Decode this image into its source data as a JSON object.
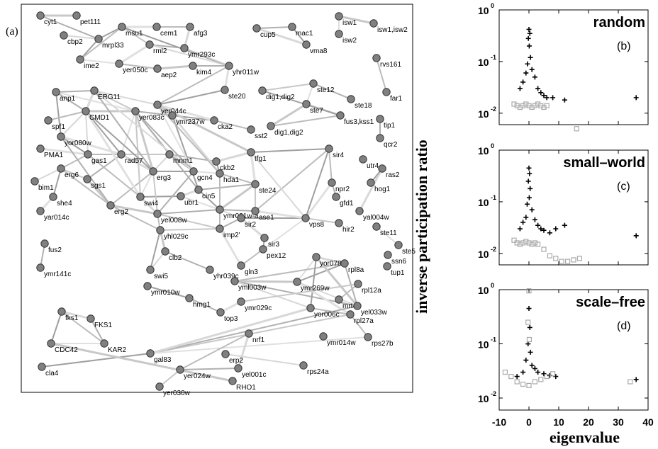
{
  "panel_a_label": "(a)",
  "y_axis_label": "inverse participation ratio",
  "x_axis_label": "eigenvalue",
  "network": {
    "nodes": [
      "cyt1",
      "pet111",
      "cbp2",
      "mrpl33",
      "msu1",
      "cem1",
      "afg3",
      "rml2",
      "ymr293c",
      "ime2",
      "yer050c",
      "aep2",
      "kim4",
      "yhr011w",
      "cup5",
      "mac1",
      "vma8",
      "isw1",
      "isw2",
      "isw1,isw2",
      "rvs161",
      "far1",
      "anp1",
      "ERG11",
      "yer044c",
      "ste20",
      "dig1,dig2",
      "ste12",
      "ste18",
      "ste7",
      "fus3,kss1",
      "dig1,dig2",
      "tip1",
      "qcr2",
      "spf1",
      "CMD1",
      "yer083c",
      "ymr237w",
      "cka2",
      "sst2",
      "yor080w",
      "PMA1",
      "gas1",
      "rad57",
      "mnm1",
      "ckb2",
      "tfg1",
      "sir4",
      "utr4",
      "ras2",
      "hog1",
      "erg6",
      "sgs1",
      "erg3",
      "gcn4",
      "hda1",
      "ste24",
      "npr2",
      "bim1",
      "she4",
      "swi4",
      "cin5",
      "ubr1",
      "ase1",
      "gfd1",
      "yal004w",
      "yar014c",
      "erg2",
      "yel008w",
      "ymr031w-a",
      "sir2",
      "vps8",
      "hir2",
      "ste11",
      "ste5",
      "yhl029c",
      "imp2'",
      "sir3",
      "pex12",
      "ssn6",
      "fus2",
      "clb2",
      "gln3",
      "tup1",
      "ymr141c",
      "swi5",
      "yhr039c",
      "yor078w",
      "rpl8a",
      "ymr269w",
      "rpl12a",
      "yml003w",
      "mrt4",
      "yel033w",
      "ymr010w",
      "hmg1",
      "ymr029c",
      "top3",
      "fks1",
      "FKS1",
      "yor006c",
      "rpl27a",
      "CDC42",
      "KAR2",
      "nrf1",
      "rps27b",
      "ymr014w",
      "gal83",
      "erp2",
      "yel001c",
      "yer024w",
      "rps24a",
      "cla4",
      "RHO1",
      "yer030w"
    ]
  },
  "chart_data": [
    {
      "type": "scatter",
      "panel": "(b)",
      "title": "random",
      "xlim": [
        -10,
        40
      ],
      "yscale": "log",
      "ylim": [
        0.006,
        1
      ],
      "ytick_labels": [
        "10",
        "10",
        "10"
      ],
      "ytick_exponents": [
        "0",
        "-1",
        "-2"
      ],
      "series": [
        {
          "marker": "plus",
          "color": "#000000",
          "points": [
            [
              0,
              0.42
            ],
            [
              0.3,
              0.35
            ],
            [
              -0.2,
              0.28
            ],
            [
              0.1,
              0.2
            ],
            [
              0.5,
              0.12
            ],
            [
              -0.5,
              0.09
            ],
            [
              1,
              0.07
            ],
            [
              -1,
              0.06
            ],
            [
              2,
              0.05
            ],
            [
              -2,
              0.04
            ],
            [
              3,
              0.03
            ],
            [
              -3,
              0.03
            ],
            [
              4,
              0.025
            ],
            [
              5,
              0.022
            ],
            [
              6,
              0.02
            ],
            [
              8,
              0.02
            ],
            [
              12,
              0.018
            ],
            [
              36,
              0.02
            ]
          ]
        },
        {
          "marker": "square",
          "color": "#aaaaaa",
          "points": [
            [
              -5,
              0.015
            ],
            [
              -4,
              0.014
            ],
            [
              -3,
              0.013
            ],
            [
              -2,
              0.014
            ],
            [
              -1,
              0.015
            ],
            [
              0,
              0.014
            ],
            [
              1,
              0.013
            ],
            [
              2,
              0.014
            ],
            [
              3,
              0.015
            ],
            [
              4,
              0.014
            ],
            [
              5,
              0.013
            ],
            [
              6,
              0.014
            ],
            [
              16,
              0.005
            ]
          ]
        }
      ]
    },
    {
      "type": "scatter",
      "panel": "(c)",
      "title": "small–world",
      "xlim": [
        -10,
        40
      ],
      "yscale": "log",
      "ylim": [
        0.006,
        1
      ],
      "ytick_labels": [
        "10",
        "10",
        "10"
      ],
      "ytick_exponents": [
        "0",
        "-1",
        "-2"
      ],
      "series": [
        {
          "marker": "plus",
          "color": "#000000",
          "points": [
            [
              0,
              0.45
            ],
            [
              0.2,
              0.35
            ],
            [
              -0.2,
              0.25
            ],
            [
              0.4,
              0.18
            ],
            [
              0.1,
              0.12
            ],
            [
              -0.6,
              0.09
            ],
            [
              1,
              0.07
            ],
            [
              -1,
              0.05
            ],
            [
              2,
              0.045
            ],
            [
              -2,
              0.04
            ],
            [
              3,
              0.035
            ],
            [
              4,
              0.03
            ],
            [
              -3,
              0.03
            ],
            [
              5,
              0.028
            ],
            [
              7,
              0.025
            ],
            [
              9,
              0.03
            ],
            [
              12,
              0.035
            ],
            [
              36,
              0.022
            ]
          ]
        },
        {
          "marker": "square",
          "color": "#aaaaaa",
          "points": [
            [
              -5,
              0.018
            ],
            [
              -4,
              0.016
            ],
            [
              -3,
              0.015
            ],
            [
              -2,
              0.016
            ],
            [
              -1,
              0.017
            ],
            [
              0,
              0.016
            ],
            [
              1,
              0.015
            ],
            [
              2,
              0.016
            ],
            [
              3,
              0.015
            ],
            [
              5,
              0.012
            ],
            [
              7,
              0.009
            ],
            [
              9,
              0.008
            ],
            [
              11,
              0.007
            ],
            [
              13,
              0.007
            ],
            [
              15,
              0.0075
            ],
            [
              17,
              0.008
            ]
          ]
        }
      ]
    },
    {
      "type": "scatter",
      "panel": "(d)",
      "title": "scale–free",
      "xlim": [
        -10,
        40
      ],
      "yscale": "log",
      "ylim": [
        0.006,
        1
      ],
      "ytick_labels": [
        "10",
        "10",
        "10"
      ],
      "ytick_exponents": [
        "0",
        "-1",
        "-2"
      ],
      "series": [
        {
          "marker": "plus",
          "color": "#000000",
          "points": [
            [
              0,
              0.45
            ],
            [
              0.3,
              0.2
            ],
            [
              -0.3,
              0.1
            ],
            [
              0.5,
              0.07
            ],
            [
              -1,
              0.05
            ],
            [
              1,
              0.04
            ],
            [
              -2,
              0.03
            ],
            [
              2,
              0.035
            ],
            [
              3,
              0.03
            ],
            [
              -4,
              0.025
            ],
            [
              5,
              0.028
            ],
            [
              7,
              0.026
            ],
            [
              9,
              0.025
            ],
            [
              36,
              0.022
            ]
          ]
        },
        {
          "marker": "square",
          "color": "#aaaaaa",
          "points": [
            [
              0,
              0.95
            ],
            [
              -0.3,
              0.25
            ],
            [
              0.1,
              0.12
            ],
            [
              -8,
              0.03
            ],
            [
              -6,
              0.025
            ],
            [
              -4,
              0.02
            ],
            [
              -2,
              0.018
            ],
            [
              0,
              0.017
            ],
            [
              2,
              0.02
            ],
            [
              4,
              0.022
            ],
            [
              6,
              0.025
            ],
            [
              8,
              0.028
            ],
            [
              34,
              0.02
            ]
          ]
        }
      ]
    }
  ]
}
